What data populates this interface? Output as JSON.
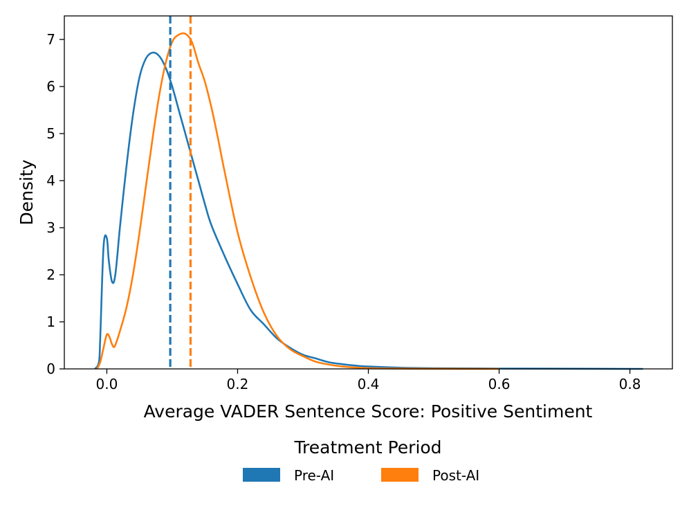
{
  "chart_data": {
    "type": "line",
    "subtype": "kde-density",
    "xlabel": "Average VADER Sentence Score: Positive Sentiment",
    "ylabel": "Density",
    "xlim": [
      -0.065,
      0.865
    ],
    "ylim": [
      0,
      7.5
    ],
    "xticks": [
      0.0,
      0.2,
      0.4,
      0.6,
      0.8
    ],
    "xtick_labels": [
      "0.0",
      "0.2",
      "0.4",
      "0.6",
      "0.8"
    ],
    "yticks": [
      0,
      1,
      2,
      3,
      4,
      5,
      6,
      7
    ],
    "ytick_labels": [
      "0",
      "1",
      "2",
      "3",
      "4",
      "5",
      "6",
      "7"
    ],
    "grid": false,
    "legend": {
      "title": "Treatment Period",
      "position": "bottom-center",
      "entries": [
        "Pre-AI",
        "Post-AI"
      ]
    },
    "series": [
      {
        "name": "Pre-AI",
        "color": "#1f77b4",
        "mean_line_x": 0.097,
        "x": [
          -0.018,
          -0.012,
          -0.01,
          -0.005,
          0.0,
          0.003,
          0.008,
          0.013,
          0.02,
          0.03,
          0.04,
          0.05,
          0.06,
          0.07,
          0.08,
          0.09,
          0.1,
          0.11,
          0.12,
          0.13,
          0.14,
          0.15,
          0.16,
          0.18,
          0.2,
          0.22,
          0.24,
          0.26,
          0.28,
          0.3,
          0.32,
          0.34,
          0.36,
          0.38,
          0.4,
          0.45,
          0.5,
          0.6,
          0.7,
          0.82
        ],
        "y": [
          0.0,
          0.15,
          0.7,
          2.6,
          2.78,
          2.3,
          1.85,
          2.0,
          3.0,
          4.3,
          5.4,
          6.2,
          6.6,
          6.72,
          6.65,
          6.4,
          6.0,
          5.5,
          5.0,
          4.5,
          4.0,
          3.5,
          3.05,
          2.4,
          1.8,
          1.25,
          0.95,
          0.65,
          0.45,
          0.3,
          0.22,
          0.14,
          0.1,
          0.07,
          0.05,
          0.025,
          0.015,
          0.008,
          0.004,
          0.0
        ]
      },
      {
        "name": "Post-AI",
        "color": "#ff7f0e",
        "mean_line_x": 0.128,
        "x": [
          -0.015,
          -0.01,
          -0.005,
          0.0,
          0.004,
          0.008,
          0.012,
          0.02,
          0.03,
          0.04,
          0.05,
          0.06,
          0.07,
          0.08,
          0.09,
          0.1,
          0.11,
          0.12,
          0.13,
          0.14,
          0.15,
          0.16,
          0.17,
          0.18,
          0.2,
          0.22,
          0.24,
          0.26,
          0.28,
          0.3,
          0.32,
          0.34,
          0.36,
          0.38,
          0.4,
          0.45,
          0.5,
          0.6
        ],
        "y": [
          0.0,
          0.15,
          0.45,
          0.73,
          0.68,
          0.52,
          0.48,
          0.8,
          1.3,
          2.0,
          2.9,
          3.9,
          4.9,
          5.8,
          6.5,
          6.95,
          7.1,
          7.12,
          6.95,
          6.5,
          6.1,
          5.55,
          4.9,
          4.2,
          2.9,
          1.95,
          1.2,
          0.7,
          0.42,
          0.27,
          0.15,
          0.09,
          0.05,
          0.03,
          0.015,
          0.006,
          0.003,
          0.0
        ]
      }
    ]
  }
}
